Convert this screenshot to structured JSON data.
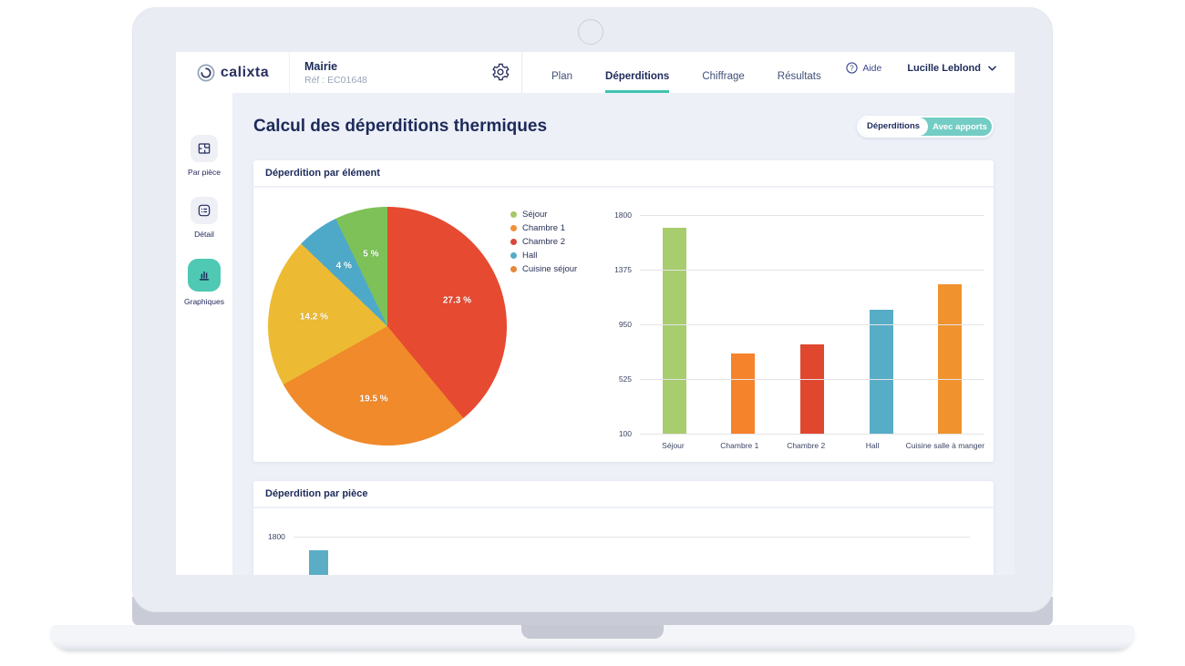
{
  "header": {
    "logo_text": "calixta",
    "project": {
      "name": "Mairie",
      "ref": "Réf : EC01648"
    },
    "tabs": [
      {
        "label": "Plan",
        "active": false
      },
      {
        "label": "Déperditions",
        "active": true
      },
      {
        "label": "Chiffrage",
        "active": false
      },
      {
        "label": "Résultats",
        "active": false
      }
    ],
    "help_label": "Aide",
    "user_name": "Lucille Leblond"
  },
  "sidebar": {
    "items": [
      {
        "label": "Par pièce",
        "icon": "floor-plan-icon",
        "active": false
      },
      {
        "label": "Détail",
        "icon": "detail-list-icon",
        "active": false
      },
      {
        "label": "Graphiques",
        "icon": "bar-chart-icon",
        "active": true
      }
    ]
  },
  "page": {
    "title": "Calcul des déperditions thermiques",
    "view_toggle": [
      {
        "label": "Déperditions",
        "selected": true
      },
      {
        "label": "Avec apports",
        "selected": false
      }
    ]
  },
  "panels": [
    {
      "title": "Déperdition par élément"
    },
    {
      "title": "Déperdition par pièce"
    }
  ],
  "colors": {
    "accent_teal": "#3fc2ae",
    "active_icon_bg": "#4fc8b4",
    "navy_text": "#1d2a5a",
    "page_bg": "#edf0f7"
  },
  "chart_data": [
    {
      "type": "pie",
      "title": "Déperdition par élément",
      "legend_position": "right-of-pie",
      "legend": [
        {
          "label": "Séjour",
          "color": "#a4c966"
        },
        {
          "label": "Chambre 1",
          "color": "#f0903a"
        },
        {
          "label": "Chambre 2",
          "color": "#d8463c"
        },
        {
          "label": "Hall",
          "color": "#57abc6"
        },
        {
          "label": "Cuisine séjour",
          "color": "#e8873c"
        }
      ],
      "slices_clockwise_from_top": [
        {
          "pct_label": "27.3 %",
          "value": 27.3,
          "color": "#e64a31"
        },
        {
          "pct_label": "19.5 %",
          "value": 19.5,
          "color": "#f08a2a"
        },
        {
          "pct_label": "14.2 %",
          "value": 14.2,
          "color": "#edbb33"
        },
        {
          "pct_label": "4 %",
          "value": 4,
          "color": "#4ea9c9"
        },
        {
          "pct_label": "5 %",
          "value": 5,
          "color": "#7dc158"
        }
      ]
    },
    {
      "type": "bar",
      "categories": [
        "Séjour",
        "Chambre 1",
        "Chambre 2",
        "Hall",
        "Cuisine salle à manger"
      ],
      "values": [
        1700,
        725,
        795,
        1060,
        1260
      ],
      "colors": [
        "#a7cd6e",
        "#f5832b",
        "#e0472f",
        "#57adc6",
        "#f0932e"
      ],
      "yticks": [
        1800,
        1375,
        950,
        525,
        100
      ],
      "ylim": [
        100,
        1800
      ],
      "grid": true,
      "legend_position": "none"
    },
    {
      "type": "bar",
      "title": "Déperdition par pièce",
      "truncated": true,
      "yticks": [
        1800
      ],
      "visible_bar_color": "#5badc6"
    }
  ]
}
